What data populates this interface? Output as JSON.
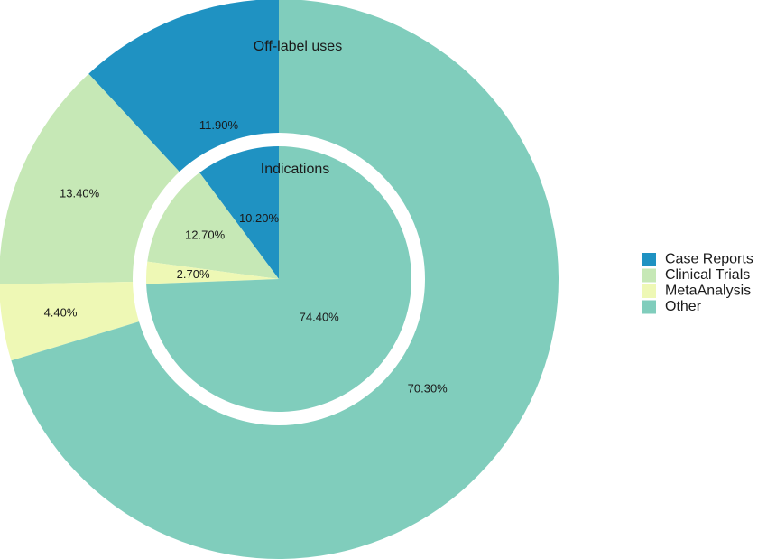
{
  "chart_data": {
    "type": "pie",
    "variant": "nested-donut",
    "categories": [
      "Case Reports",
      "Clinical Trials",
      "MetaAnalysis",
      "Other"
    ],
    "colors": [
      "#1f92c2",
      "#c6e8b6",
      "#eef8b5",
      "#80cdbc"
    ],
    "series": [
      {
        "name": "Off-label uses",
        "ring": "outer",
        "values": [
          11.9,
          13.4,
          4.4,
          70.3
        ],
        "labels": [
          "11.90%",
          "13.40%",
          "4.40%",
          "70.30%"
        ]
      },
      {
        "name": "Indications",
        "ring": "inner",
        "values": [
          10.2,
          12.7,
          2.7,
          74.4
        ],
        "labels": [
          "10.20%",
          "12.70%",
          "2.70%",
          "74.40%"
        ]
      }
    ],
    "legend": {
      "placement": "right",
      "entries": [
        "Case Reports",
        "Clinical Trials",
        "MetaAnalysis",
        "Other"
      ]
    }
  }
}
